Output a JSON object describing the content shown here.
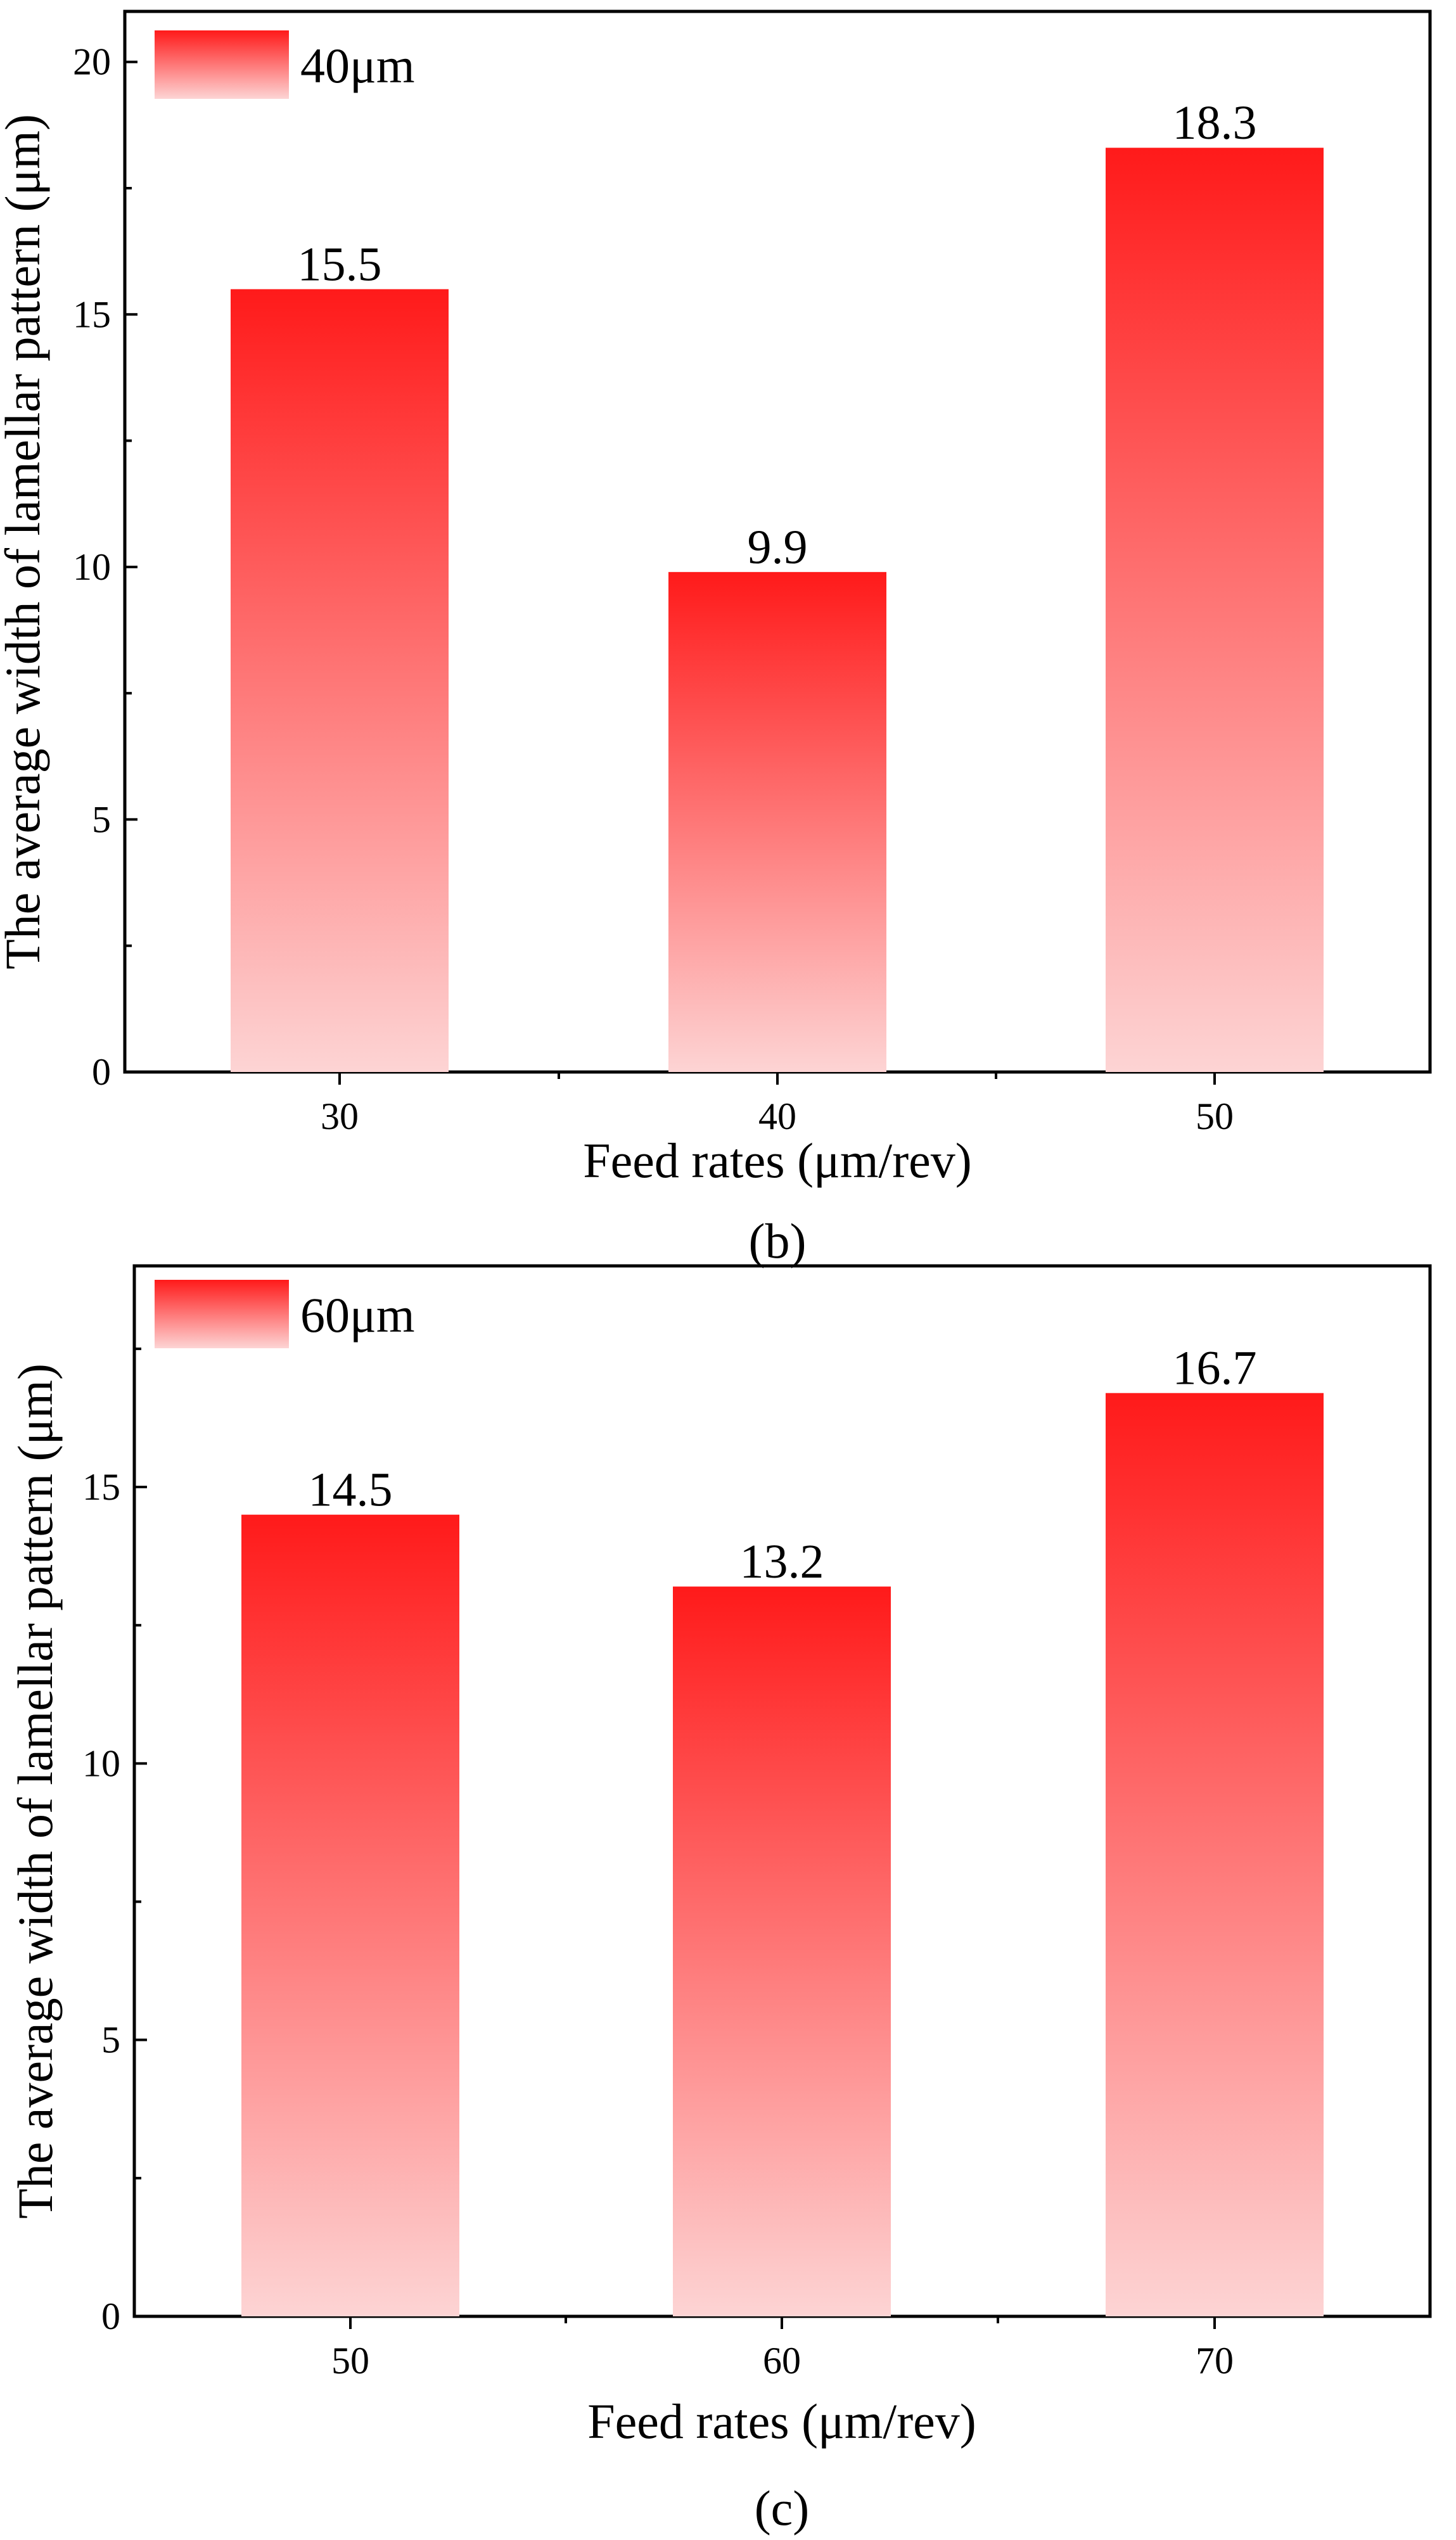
{
  "chart_data": [
    {
      "type": "bar",
      "panel": "(b)",
      "legend": "40μm",
      "categories": [
        "30",
        "40",
        "50"
      ],
      "values": [
        15.5,
        9.9,
        18.3
      ],
      "value_labels": [
        "15.5",
        "9.9",
        "18.3"
      ],
      "xlabel": "Feed rates (μm/rev)",
      "ylabel": "The average width of lamellar pattern (μm)",
      "ylim": [
        0,
        21
      ],
      "yticks": [
        0,
        5,
        10,
        15,
        20
      ],
      "grid": false,
      "legend_position": "top-left",
      "colors": {
        "top": "#ff1a1a",
        "bottom": "#fdd4d4"
      }
    },
    {
      "type": "bar",
      "panel": "(c)",
      "legend": "60μm",
      "categories": [
        "50",
        "60",
        "70"
      ],
      "values": [
        14.5,
        13.2,
        16.7
      ],
      "value_labels": [
        "14.5",
        "13.2",
        "16.7"
      ],
      "xlabel": "Feed rates (μm/rev)",
      "ylabel": "The average width of lamellar pattern (μm)",
      "ylim": [
        0,
        19
      ],
      "yticks": [
        0,
        5,
        10,
        15
      ],
      "grid": false,
      "legend_position": "top-left",
      "colors": {
        "top": "#ff1a1a",
        "bottom": "#fdd4d4"
      }
    }
  ]
}
